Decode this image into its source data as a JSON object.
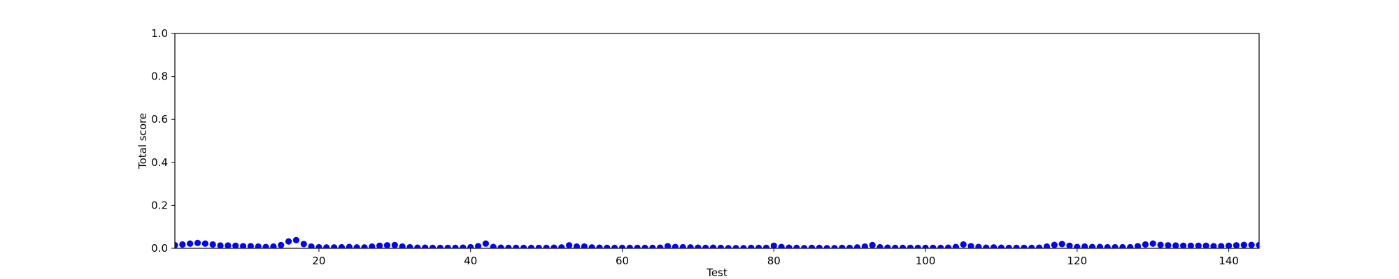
{
  "chart_data": {
    "type": "scatter",
    "title": "",
    "xlabel": "Test",
    "ylabel": "Total score",
    "xlim": [
      1,
      144
    ],
    "ylim": [
      0,
      1.0
    ],
    "x_ticks": [
      20,
      40,
      60,
      80,
      100,
      120,
      140
    ],
    "y_ticks": [
      0.0,
      0.2,
      0.4,
      0.6,
      0.8,
      1.0
    ],
    "x_tick_labels": [
      "20",
      "40",
      "60",
      "80",
      "100",
      "120",
      "140"
    ],
    "y_tick_labels": [
      "0.0",
      "0.2",
      "0.4",
      "0.6",
      "0.8",
      "1.0"
    ],
    "grid": false,
    "marker_color": "#0000ff",
    "series": [
      {
        "x": [
          1,
          2,
          3,
          4,
          5,
          6,
          7,
          8,
          9,
          10,
          11,
          12,
          13,
          14,
          15,
          16,
          17,
          18,
          19,
          20,
          21,
          22,
          23,
          24,
          25,
          26,
          27,
          28,
          29,
          30,
          31,
          32,
          33,
          34,
          35,
          36,
          37,
          38,
          39,
          40,
          41,
          42,
          43,
          44,
          45,
          46,
          47,
          48,
          49,
          50,
          51,
          52,
          53,
          54,
          55,
          56,
          57,
          58,
          59,
          60,
          61,
          62,
          63,
          64,
          65,
          66,
          67,
          68,
          69,
          70,
          71,
          72,
          73,
          74,
          75,
          76,
          77,
          78,
          79,
          80,
          81,
          82,
          83,
          84,
          85,
          86,
          87,
          88,
          89,
          90,
          91,
          92,
          93,
          94,
          95,
          96,
          97,
          98,
          99,
          100,
          101,
          102,
          103,
          104,
          105,
          106,
          107,
          108,
          109,
          110,
          111,
          112,
          113,
          114,
          115,
          116,
          117,
          118,
          119,
          120,
          121,
          122,
          123,
          124,
          125,
          126,
          127,
          128,
          129,
          130,
          131,
          132,
          133,
          134,
          135,
          136,
          137,
          138,
          139,
          140,
          141,
          142,
          143,
          144
        ],
        "values": [
          0.015,
          0.018,
          0.022,
          0.025,
          0.022,
          0.018,
          0.013,
          0.013,
          0.012,
          0.01,
          0.01,
          0.008,
          0.006,
          0.008,
          0.015,
          0.032,
          0.038,
          0.02,
          0.008,
          0.005,
          0.004,
          0.004,
          0.005,
          0.006,
          0.004,
          0.004,
          0.008,
          0.012,
          0.014,
          0.015,
          0.008,
          0.005,
          0.003,
          0.003,
          0.002,
          0.002,
          0.002,
          0.002,
          0.003,
          0.005,
          0.01,
          0.022,
          0.006,
          0.003,
          0.002,
          0.002,
          0.002,
          0.002,
          0.002,
          0.002,
          0.003,
          0.004,
          0.014,
          0.008,
          0.008,
          0.004,
          0.003,
          0.002,
          0.002,
          0.002,
          0.002,
          0.002,
          0.002,
          0.002,
          0.003,
          0.01,
          0.006,
          0.005,
          0.004,
          0.003,
          0.002,
          0.003,
          0.002,
          0.001,
          0.001,
          0.001,
          0.002,
          0.002,
          0.002,
          0.012,
          0.006,
          0.003,
          0.002,
          0.001,
          0.002,
          0.002,
          0.001,
          0.001,
          0.002,
          0.002,
          0.004,
          0.008,
          0.015,
          0.005,
          0.003,
          0.002,
          0.002,
          0.002,
          0.002,
          0.002,
          0.002,
          0.002,
          0.003,
          0.006,
          0.018,
          0.01,
          0.006,
          0.003,
          0.004,
          0.003,
          0.002,
          0.002,
          0.002,
          0.002,
          0.003,
          0.008,
          0.016,
          0.02,
          0.012,
          0.006,
          0.008,
          0.006,
          0.006,
          0.005,
          0.005,
          0.005,
          0.005,
          0.01,
          0.018,
          0.022,
          0.016,
          0.014,
          0.013,
          0.012,
          0.012,
          0.012,
          0.012,
          0.01,
          0.01,
          0.012,
          0.014,
          0.016,
          0.016,
          0.015
        ]
      }
    ]
  }
}
